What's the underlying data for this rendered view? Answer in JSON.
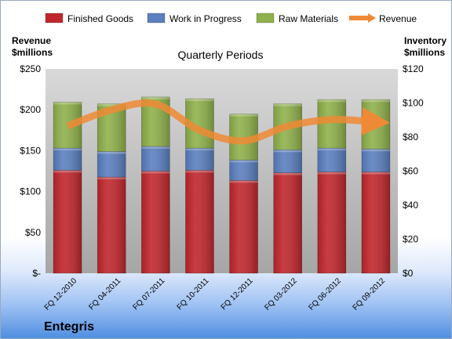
{
  "company": "Entegris",
  "chart_data": {
    "type": "bar",
    "stacked": true,
    "title": "Quarterly Periods",
    "categories": [
      "FQ 12-2010",
      "FQ 04-2011",
      "FQ 07-2011",
      "FQ 10-2011",
      "FQ 12-2011",
      "FQ 03-2012",
      "FQ 06-2012",
      "FQ 09-2012"
    ],
    "left_axis": {
      "label_line1": "Revenue",
      "label_line2": "$millions",
      "range": [
        0,
        250
      ],
      "ticks": [
        {
          "value": 0,
          "label": "$-"
        },
        {
          "value": 50,
          "label": "$50"
        },
        {
          "value": 100,
          "label": "$100"
        },
        {
          "value": 150,
          "label": "$150"
        },
        {
          "value": 200,
          "label": "$200"
        },
        {
          "value": 250,
          "label": "$250"
        }
      ]
    },
    "right_axis": {
      "label_line1": "Inventory",
      "label_line2": "$millions",
      "range": [
        0,
        120
      ],
      "ticks": [
        {
          "value": 0,
          "label": "$0"
        },
        {
          "value": 20,
          "label": "$20"
        },
        {
          "value": 40,
          "label": "$40"
        },
        {
          "value": 60,
          "label": "$60"
        },
        {
          "value": 80,
          "label": "$80"
        },
        {
          "value": 100,
          "label": "$100"
        },
        {
          "value": 120,
          "label": "$120"
        }
      ]
    },
    "series": [
      {
        "name": "Finished Goods",
        "axis": "right",
        "color": "#c0272d",
        "values": [
          60.5,
          56.5,
          60,
          60.5,
          54.5,
          59,
          59.5,
          59.5
        ]
      },
      {
        "name": "Work in Progress",
        "axis": "right",
        "color": "#5b7fbf",
        "values": [
          13,
          15,
          14.5,
          13,
          12,
          13.5,
          14,
          13.5
        ]
      },
      {
        "name": "Raw Materials",
        "axis": "right",
        "color": "#8fb14b",
        "values": [
          27,
          28,
          29,
          29,
          27,
          27,
          28.5,
          29
        ]
      },
      {
        "name": "Revenue",
        "axis": "left",
        "type": "line",
        "color": "#ee8a35",
        "values": [
          180,
          200,
          207,
          175,
          162,
          180,
          188,
          185
        ]
      }
    ],
    "legend_position": "top",
    "grid": false
  }
}
